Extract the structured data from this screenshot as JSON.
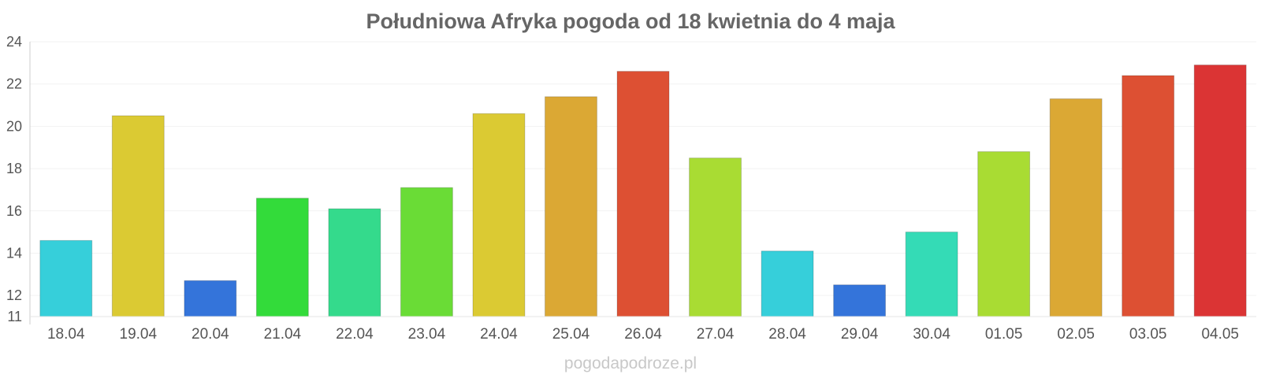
{
  "chart_data": {
    "type": "bar",
    "title": "Południowa Afryka pogoda od 18 kwietnia do 4 maja",
    "xlabel": "",
    "ylabel": "",
    "ylim": [
      11,
      24
    ],
    "yticks": [
      11,
      12,
      14,
      16,
      18,
      20,
      22,
      24
    ],
    "grid": true,
    "categories": [
      "18.04",
      "19.04",
      "20.04",
      "21.04",
      "22.04",
      "23.04",
      "24.04",
      "25.04",
      "26.04",
      "27.04",
      "28.04",
      "29.04",
      "30.04",
      "01.05",
      "02.05",
      "03.05",
      "04.05"
    ],
    "values": [
      14.6,
      20.5,
      12.7,
      16.6,
      16.1,
      17.1,
      20.6,
      21.4,
      22.6,
      18.5,
      14.1,
      12.5,
      15.0,
      18.8,
      21.3,
      22.4,
      22.9
    ],
    "colors": [
      "#36cfda",
      "#dbca33",
      "#3474da",
      "#33db3a",
      "#34da8c",
      "#6adc36",
      "#dbca33",
      "#dba834",
      "#dd5033",
      "#a9dc33",
      "#36cfda",
      "#3474da",
      "#34dbb6",
      "#a9dc33",
      "#dba834",
      "#dd5033",
      "#db3434"
    ]
  },
  "watermark": "pogodapodroze.pl"
}
